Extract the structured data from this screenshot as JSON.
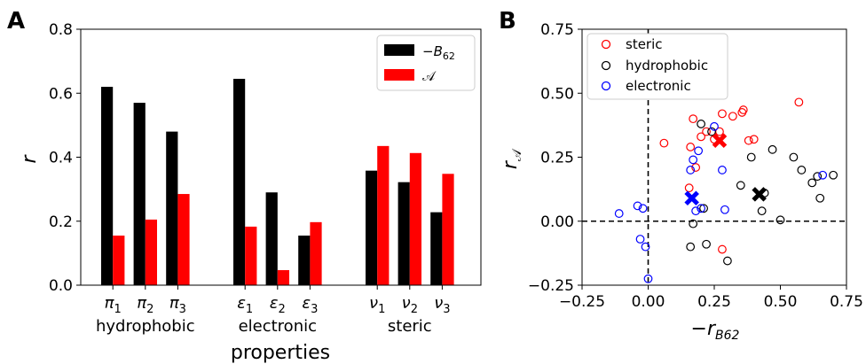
{
  "panel_labels": [
    "A",
    "B"
  ],
  "legend_a": {
    "black": "−B",
    "black_sub": "62",
    "red": "𝒜"
  },
  "legend_b": {
    "steric": "steric",
    "hydrophobic": "hydrophobic",
    "electronic": "electronic"
  },
  "colors": {
    "black": "#000000",
    "red": "#ff0000",
    "blue": "#0000ff"
  },
  "chart_data": [
    {
      "type": "bar",
      "panel": "A",
      "groups": [
        {
          "label": "hydrophobic",
          "categories": [
            "π",
            "π",
            "π"
          ],
          "subs": [
            "1",
            "2",
            "3"
          ]
        },
        {
          "label": "electronic",
          "categories": [
            "ε",
            "ε",
            "ε"
          ],
          "subs": [
            "1",
            "2",
            "3"
          ]
        },
        {
          "label": "steric",
          "categories": [
            "ν",
            "ν",
            "ν"
          ],
          "subs": [
            "1",
            "2",
            "3"
          ]
        }
      ],
      "series": [
        {
          "name": "−B62",
          "color": "#000000",
          "values": [
            0.62,
            0.57,
            0.48,
            0.645,
            0.29,
            0.155,
            0.358,
            0.322,
            0.228
          ]
        },
        {
          "name": "𝒜",
          "color": "#ff0000",
          "values": [
            0.155,
            0.205,
            0.285,
            0.183,
            0.047,
            0.197,
            0.435,
            0.413,
            0.348
          ]
        }
      ],
      "xlabel": "properties",
      "ylabel": "r",
      "ylim": [
        0,
        0.8
      ],
      "yticks": [
        "0.0",
        "0.2",
        "0.4",
        "0.6",
        "0.8"
      ],
      "legend_position": "top-right"
    },
    {
      "type": "scatter",
      "panel": "B",
      "xlabel": "−r",
      "xlabel_sub": "B62",
      "ylabel": "r",
      "ylabel_sub": "𝒜",
      "xlim": [
        -0.25,
        0.75
      ],
      "ylim": [
        -0.25,
        0.75
      ],
      "xticks": [
        "−0.25",
        "0.00",
        "0.25",
        "0.50",
        "0.75"
      ],
      "yticks": [
        "−0.25",
        "0.00",
        "0.25",
        "0.50",
        "0.75"
      ],
      "legend_position": "top-left",
      "series": [
        {
          "name": "steric",
          "color": "#ff0000",
          "points": [
            [
              0.06,
              0.305
            ],
            [
              0.17,
              0.4
            ],
            [
              0.155,
              0.13
            ],
            [
              0.16,
              0.29
            ],
            [
              0.2,
              0.33
            ],
            [
              0.22,
              0.35
            ],
            [
              0.25,
              0.32
            ],
            [
              0.28,
              0.42
            ],
            [
              0.32,
              0.41
            ],
            [
              0.355,
              0.425
            ],
            [
              0.36,
              0.435
            ],
            [
              0.38,
              0.315
            ],
            [
              0.4,
              0.32
            ],
            [
              0.28,
              -0.11
            ],
            [
              0.57,
              0.465
            ],
            [
              0.18,
              0.21
            ],
            [
              0.27,
              0.35
            ]
          ],
          "mean": [
            0.27,
            0.315
          ]
        },
        {
          "name": "hydrophobic",
          "color": "#000000",
          "points": [
            [
              0.2,
              0.38
            ],
            [
              0.24,
              0.35
            ],
            [
              0.21,
              0.05
            ],
            [
              0.35,
              0.14
            ],
            [
              0.39,
              0.25
            ],
            [
              0.43,
              0.04
            ],
            [
              0.47,
              0.28
            ],
            [
              0.5,
              0.005
            ],
            [
              0.55,
              0.25
            ],
            [
              0.58,
              0.2
            ],
            [
              0.62,
              0.15
            ],
            [
              0.64,
              0.175
            ],
            [
              0.65,
              0.09
            ],
            [
              0.7,
              0.18
            ],
            [
              0.16,
              -0.1
            ],
            [
              0.22,
              -0.09
            ],
            [
              0.3,
              -0.155
            ],
            [
              0.44,
              0.11
            ],
            [
              0.17,
              -0.01
            ]
          ],
          "mean": [
            0.42,
            0.105
          ]
        },
        {
          "name": "electronic",
          "color": "#0000ff",
          "points": [
            [
              -0.11,
              0.03
            ],
            [
              -0.04,
              0.06
            ],
            [
              -0.02,
              0.05
            ],
            [
              -0.03,
              -0.07
            ],
            [
              -0.01,
              -0.1
            ],
            [
              0.0,
              -0.225
            ],
            [
              0.16,
              0.2
            ],
            [
              0.17,
              0.24
            ],
            [
              0.19,
              0.275
            ],
            [
              0.2,
              0.05
            ],
            [
              0.25,
              0.37
            ],
            [
              0.28,
              0.2
            ],
            [
              0.29,
              0.045
            ],
            [
              0.18,
              0.04
            ],
            [
              0.66,
              0.18
            ]
          ],
          "mean": [
            0.165,
            0.09
          ]
        }
      ]
    }
  ]
}
